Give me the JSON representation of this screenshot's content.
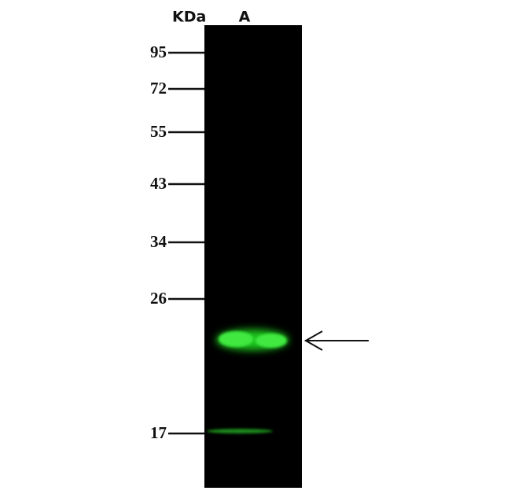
{
  "header": {
    "unit": "KDa",
    "lane": "A"
  },
  "markers": [
    95,
    72,
    55,
    43,
    34,
    26,
    17
  ]
}
